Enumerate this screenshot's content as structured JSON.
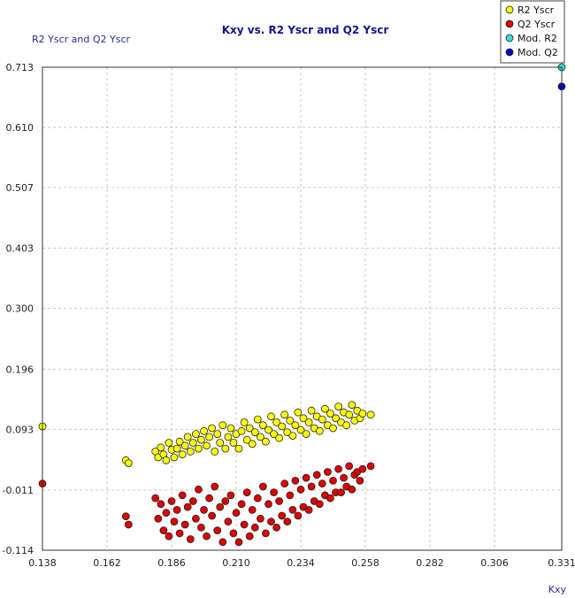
{
  "chart_data": {
    "type": "scatter",
    "title": "Kxy vs. R2 Yscr and Q2 Yscr",
    "xlabel": "Kxy",
    "ylabel": "R2 Yscr and Q2 Yscr",
    "xlim": [
      0.138,
      0.331
    ],
    "ylim": [
      -0.114,
      0.713
    ],
    "x_ticks": [
      "0.138",
      "0.162",
      "0.186",
      "0.210",
      "0.234",
      "0.258",
      "0.282",
      "0.306",
      "0.331"
    ],
    "y_ticks": [
      "0.713",
      "0.610",
      "0.507",
      "0.403",
      "0.300",
      "0.196",
      "0.093",
      "-0.011",
      "-0.114"
    ],
    "grid": true,
    "legend_position": "top-right",
    "colors": {
      "r2": "#ffff00",
      "q2": "#dd0000",
      "mod_r2": "#33dddd",
      "mod_q2": "#0000cc",
      "axis_text": "#14148c"
    },
    "series": [
      {
        "name": "R2 Yscr",
        "x": [
          0.138,
          0.169,
          0.17,
          0.18,
          0.181,
          0.182,
          0.183,
          0.184,
          0.185,
          0.186,
          0.187,
          0.188,
          0.189,
          0.19,
          0.191,
          0.192,
          0.193,
          0.194,
          0.195,
          0.196,
          0.197,
          0.198,
          0.199,
          0.2,
          0.201,
          0.202,
          0.203,
          0.204,
          0.205,
          0.206,
          0.207,
          0.208,
          0.209,
          0.21,
          0.211,
          0.212,
          0.213,
          0.214,
          0.215,
          0.216,
          0.217,
          0.218,
          0.219,
          0.22,
          0.221,
          0.222,
          0.223,
          0.224,
          0.225,
          0.226,
          0.227,
          0.228,
          0.229,
          0.23,
          0.231,
          0.232,
          0.233,
          0.234,
          0.235,
          0.236,
          0.237,
          0.238,
          0.239,
          0.24,
          0.241,
          0.242,
          0.243,
          0.244,
          0.245,
          0.246,
          0.247,
          0.248,
          0.249,
          0.25,
          0.251,
          0.252,
          0.253,
          0.254,
          0.255,
          0.256,
          0.257,
          0.26
        ],
        "y": [
          0.098,
          0.04,
          0.035,
          0.055,
          0.045,
          0.062,
          0.05,
          0.04,
          0.07,
          0.058,
          0.045,
          0.06,
          0.072,
          0.05,
          0.065,
          0.08,
          0.055,
          0.07,
          0.085,
          0.06,
          0.075,
          0.09,
          0.065,
          0.08,
          0.095,
          0.055,
          0.085,
          0.07,
          0.1,
          0.06,
          0.08,
          0.095,
          0.07,
          0.085,
          0.06,
          0.09,
          0.105,
          0.075,
          0.095,
          0.068,
          0.088,
          0.11,
          0.08,
          0.1,
          0.072,
          0.092,
          0.115,
          0.085,
          0.105,
          0.078,
          0.098,
          0.118,
          0.088,
          0.108,
          0.082,
          0.1,
          0.122,
          0.092,
          0.112,
          0.085,
          0.105,
          0.125,
          0.095,
          0.115,
          0.09,
          0.11,
          0.128,
          0.1,
          0.12,
          0.095,
          0.112,
          0.132,
          0.105,
          0.122,
          0.1,
          0.118,
          0.135,
          0.108,
          0.125,
          0.112,
          0.12,
          0.118
        ],
        "color": "#ffff00"
      },
      {
        "name": "Q2 Yscr",
        "x": [
          0.138,
          0.169,
          0.17,
          0.18,
          0.181,
          0.182,
          0.183,
          0.184,
          0.185,
          0.186,
          0.187,
          0.188,
          0.189,
          0.19,
          0.191,
          0.192,
          0.193,
          0.194,
          0.195,
          0.196,
          0.197,
          0.198,
          0.199,
          0.2,
          0.201,
          0.202,
          0.203,
          0.204,
          0.205,
          0.206,
          0.207,
          0.208,
          0.209,
          0.21,
          0.211,
          0.212,
          0.213,
          0.214,
          0.215,
          0.216,
          0.217,
          0.218,
          0.219,
          0.22,
          0.221,
          0.222,
          0.223,
          0.224,
          0.225,
          0.226,
          0.227,
          0.228,
          0.229,
          0.23,
          0.231,
          0.232,
          0.233,
          0.234,
          0.235,
          0.236,
          0.237,
          0.238,
          0.239,
          0.24,
          0.241,
          0.242,
          0.243,
          0.244,
          0.245,
          0.246,
          0.247,
          0.248,
          0.249,
          0.25,
          0.251,
          0.252,
          0.253,
          0.254,
          0.255,
          0.256,
          0.257,
          0.26
        ],
        "y": [
          -0.0,
          -0.056,
          -0.07,
          -0.025,
          -0.06,
          -0.035,
          -0.08,
          -0.05,
          -0.09,
          -0.03,
          -0.065,
          -0.045,
          -0.085,
          -0.02,
          -0.07,
          -0.04,
          -0.095,
          -0.03,
          -0.06,
          -0.01,
          -0.075,
          -0.045,
          -0.09,
          -0.025,
          -0.055,
          -0.005,
          -0.08,
          -0.04,
          -0.1,
          -0.03,
          -0.065,
          -0.02,
          -0.085,
          -0.05,
          -0.1,
          -0.035,
          -0.07,
          -0.015,
          -0.09,
          -0.045,
          -0.075,
          -0.025,
          -0.06,
          -0.005,
          -0.085,
          -0.035,
          -0.065,
          -0.015,
          -0.075,
          -0.03,
          -0.055,
          0.0,
          -0.065,
          -0.02,
          -0.045,
          0.005,
          -0.055,
          -0.01,
          -0.04,
          0.01,
          -0.045,
          -0.005,
          -0.03,
          0.015,
          -0.035,
          0.0,
          -0.02,
          0.02,
          -0.025,
          0.005,
          -0.015,
          0.025,
          -0.015,
          0.01,
          -0.005,
          0.03,
          -0.01,
          0.015,
          0.02,
          0.005,
          0.025,
          0.03
        ],
        "color": "#dd0000"
      },
      {
        "name": "Mod. R2",
        "x": [
          0.331
        ],
        "y": [
          0.713
        ],
        "color": "#33dddd"
      },
      {
        "name": "Mod. Q2",
        "x": [
          0.331
        ],
        "y": [
          0.68
        ],
        "color": "#0000cc"
      }
    ]
  }
}
